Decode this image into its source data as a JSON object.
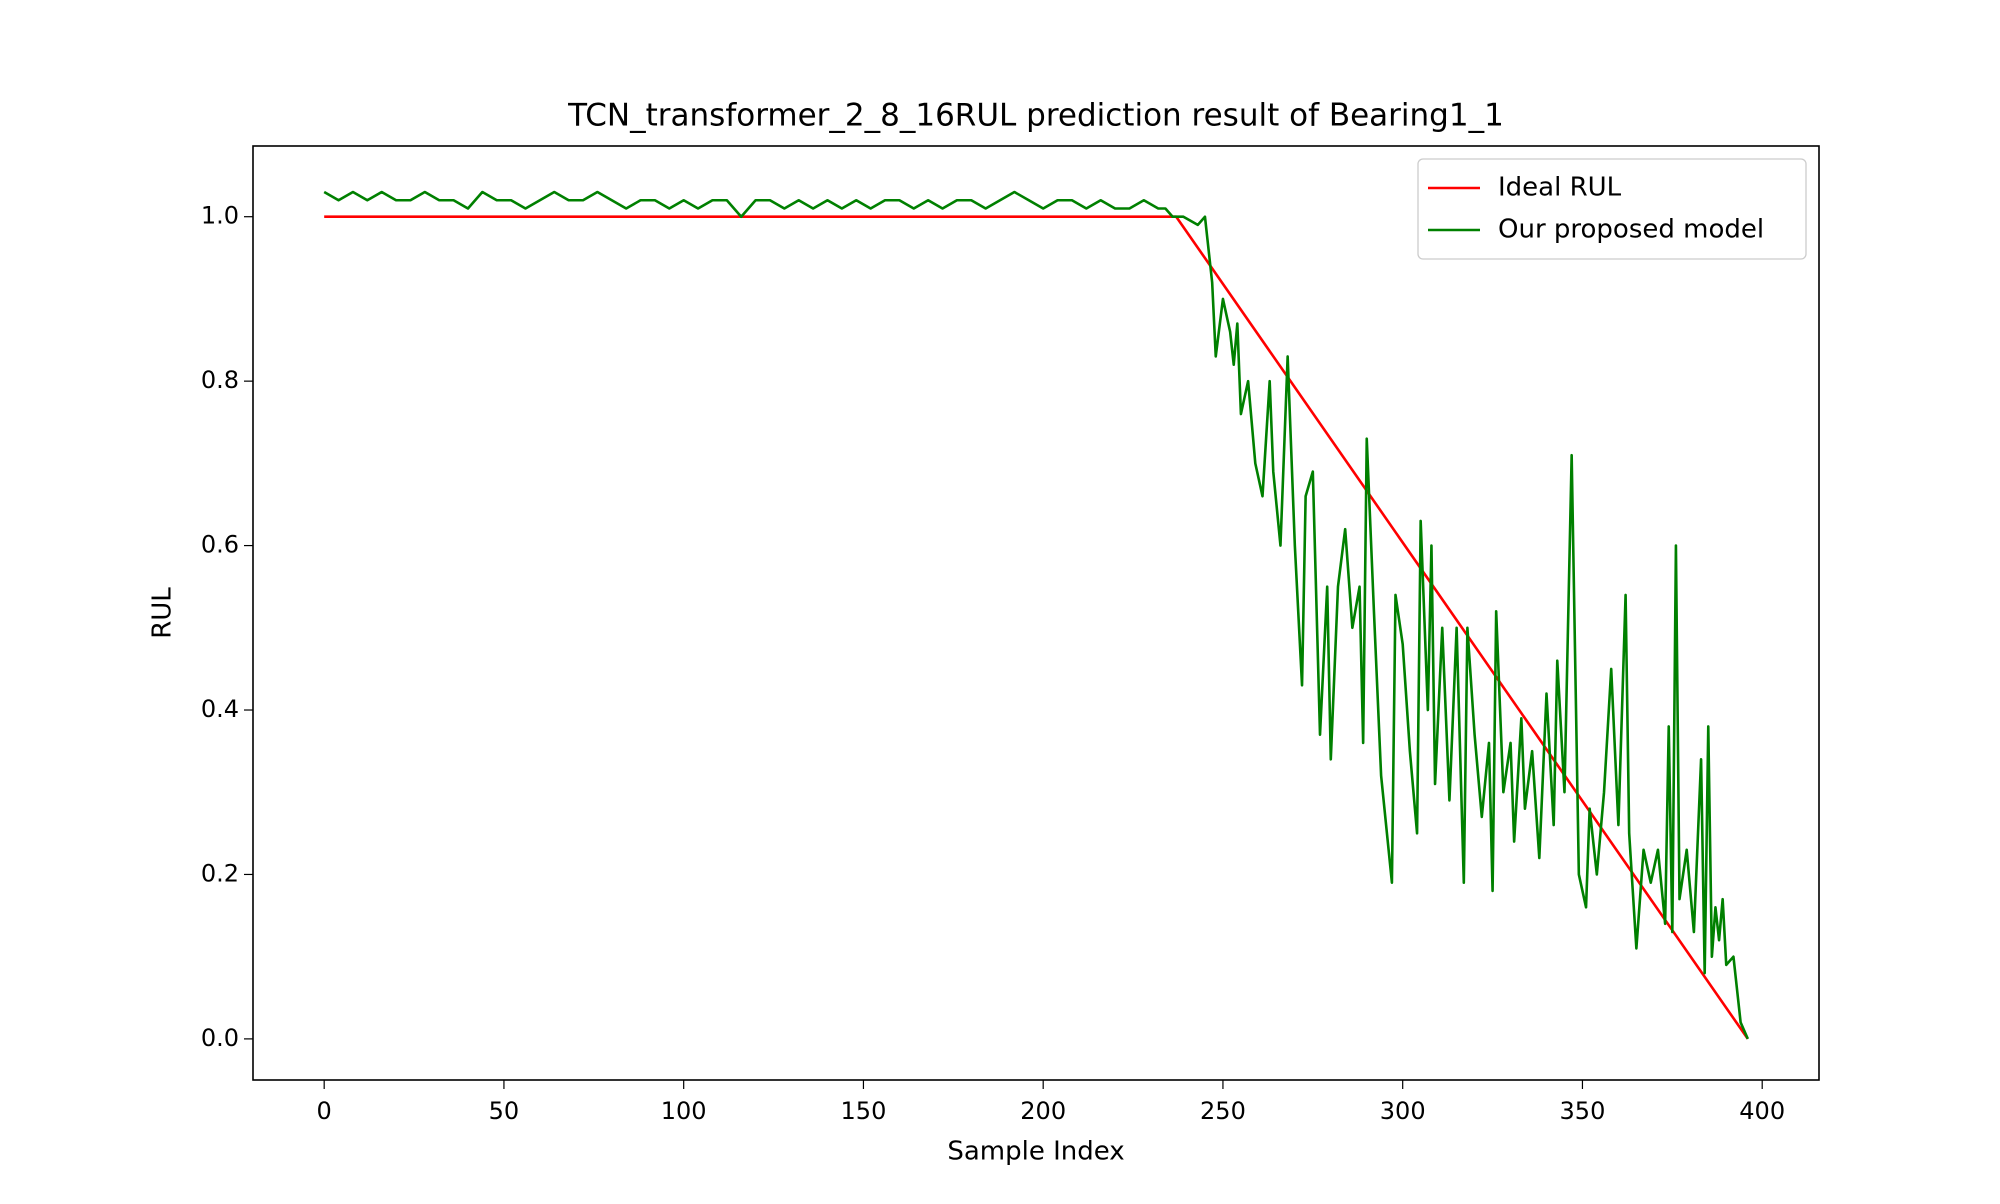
{
  "chart_data": {
    "type": "line",
    "title": "TCN_transformer_2_8_16RUL prediction result of Bearing1_1",
    "xlabel": "Sample Index",
    "ylabel": "RUL",
    "xlim": [
      -19.8,
      415.8
    ],
    "ylim": [
      -0.05,
      1.086
    ],
    "xticks": [
      0,
      50,
      100,
      150,
      200,
      250,
      300,
      350,
      400
    ],
    "yticks": [
      {
        "value": 0,
        "label": "0.0"
      },
      0.2,
      0.4,
      0.6,
      0.8,
      {
        "value": 1,
        "label": "1.0"
      }
    ],
    "legend": "upper right",
    "series": [
      {
        "name": "Ideal RUL",
        "color": "#ff0000",
        "x": [
          0,
          237,
          396
        ],
        "values": [
          1.0,
          1.0,
          0.0
        ]
      },
      {
        "name": "Our proposed model",
        "color": "#008000",
        "x": [
          0,
          4,
          8,
          12,
          16,
          20,
          24,
          28,
          32,
          36,
          40,
          44,
          48,
          52,
          56,
          60,
          64,
          68,
          72,
          76,
          80,
          84,
          88,
          92,
          96,
          100,
          104,
          108,
          112,
          116,
          120,
          124,
          128,
          132,
          136,
          140,
          144,
          148,
          152,
          156,
          160,
          164,
          168,
          172,
          176,
          180,
          184,
          188,
          192,
          196,
          200,
          204,
          208,
          212,
          216,
          220,
          224,
          228,
          232,
          234,
          236,
          239,
          243,
          245,
          247,
          248,
          250,
          252,
          253,
          254,
          255,
          257,
          259,
          261,
          263,
          264,
          266,
          268,
          270,
          272,
          273,
          275,
          277,
          279,
          280,
          282,
          284,
          286,
          288,
          289,
          290,
          292,
          294,
          297,
          298,
          300,
          302,
          304,
          305,
          307,
          308,
          309,
          311,
          313,
          315,
          317,
          318,
          320,
          322,
          324,
          325,
          326,
          328,
          330,
          331,
          333,
          334,
          336,
          338,
          340,
          342,
          343,
          345,
          347,
          349,
          351,
          352,
          354,
          356,
          358,
          360,
          362,
          363,
          365,
          367,
          369,
          371,
          373,
          374,
          375,
          376,
          377,
          379,
          381,
          383,
          384,
          385,
          386,
          387,
          388,
          389,
          390,
          392,
          394,
          396
        ],
        "values": [
          1.03,
          1.02,
          1.03,
          1.02,
          1.03,
          1.02,
          1.02,
          1.03,
          1.02,
          1.02,
          1.01,
          1.03,
          1.02,
          1.02,
          1.01,
          1.02,
          1.03,
          1.02,
          1.02,
          1.03,
          1.02,
          1.01,
          1.02,
          1.02,
          1.01,
          1.02,
          1.01,
          1.02,
          1.02,
          1.0,
          1.02,
          1.02,
          1.01,
          1.02,
          1.01,
          1.02,
          1.01,
          1.02,
          1.01,
          1.02,
          1.02,
          1.01,
          1.02,
          1.01,
          1.02,
          1.02,
          1.01,
          1.02,
          1.03,
          1.02,
          1.01,
          1.02,
          1.02,
          1.01,
          1.02,
          1.01,
          1.01,
          1.02,
          1.01,
          1.01,
          1.0,
          1.0,
          0.99,
          1.0,
          0.92,
          0.83,
          0.9,
          0.86,
          0.82,
          0.87,
          0.76,
          0.8,
          0.7,
          0.66,
          0.8,
          0.69,
          0.6,
          0.83,
          0.6,
          0.43,
          0.66,
          0.69,
          0.37,
          0.55,
          0.34,
          0.55,
          0.62,
          0.5,
          0.55,
          0.36,
          0.73,
          0.52,
          0.32,
          0.19,
          0.54,
          0.48,
          0.35,
          0.25,
          0.63,
          0.4,
          0.6,
          0.31,
          0.5,
          0.29,
          0.5,
          0.19,
          0.5,
          0.37,
          0.27,
          0.36,
          0.18,
          0.52,
          0.3,
          0.36,
          0.24,
          0.39,
          0.28,
          0.35,
          0.22,
          0.42,
          0.26,
          0.46,
          0.3,
          0.71,
          0.2,
          0.16,
          0.28,
          0.2,
          0.3,
          0.45,
          0.26,
          0.54,
          0.25,
          0.11,
          0.23,
          0.19,
          0.23,
          0.14,
          0.38,
          0.13,
          0.6,
          0.17,
          0.23,
          0.13,
          0.34,
          0.08,
          0.38,
          0.1,
          0.16,
          0.12,
          0.17,
          0.09,
          0.1,
          0.02,
          0.0
        ]
      }
    ]
  }
}
